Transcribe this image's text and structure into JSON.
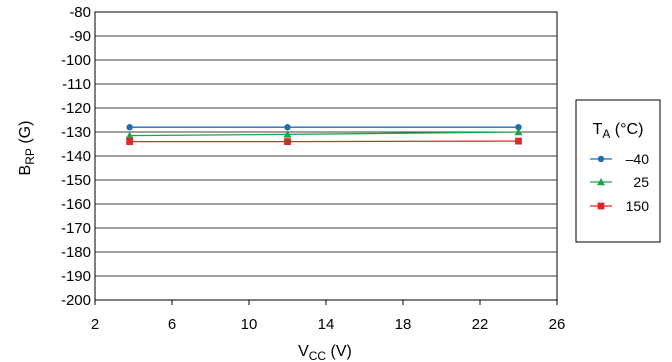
{
  "chart_data": {
    "type": "line",
    "title": "",
    "xlabel": {
      "main": "V",
      "sub": "CC",
      "unit": " (V)"
    },
    "ylabel": {
      "main": "B",
      "sub": "RP",
      "unit": " (G)"
    },
    "xlim": [
      2,
      26
    ],
    "ylim": [
      -200,
      -80
    ],
    "xticks": [
      2,
      6,
      10,
      14,
      18,
      22,
      26
    ],
    "xtick_labels": [
      "2",
      "6",
      "10",
      "14",
      "18",
      "22",
      "26"
    ],
    "yticks": [
      -80,
      -90,
      -100,
      -110,
      -120,
      -130,
      -140,
      -150,
      -160,
      -170,
      -180,
      -190,
      -200
    ],
    "ytick_labels": [
      "-80",
      "-90",
      "-100",
      "-110",
      "-120",
      "-130",
      "-140",
      "-150",
      "-160",
      "-170",
      "-180",
      "-190",
      "-200"
    ],
    "grid": {
      "horizontal": true,
      "vertical": false
    },
    "legend": {
      "placement": "right",
      "title": {
        "main": "T",
        "sub": "A",
        "unit": " (°C)"
      }
    },
    "series": [
      {
        "name": "–40",
        "marker": "circle",
        "color": "#1f6eb3",
        "x": [
          3.8,
          12.0,
          24.0
        ],
        "y": [
          -128,
          -128,
          -128
        ]
      },
      {
        "name": "25",
        "marker": "triangle",
        "color": "#1ea34a",
        "x": [
          3.8,
          12.0,
          24.0
        ],
        "y": [
          -131.5,
          -131,
          -130
        ]
      },
      {
        "name": "150",
        "marker": "square",
        "color": "#e0282b",
        "x": [
          3.8,
          12.0,
          24.0
        ],
        "y": [
          -134,
          -134,
          -133.8
        ]
      }
    ]
  }
}
